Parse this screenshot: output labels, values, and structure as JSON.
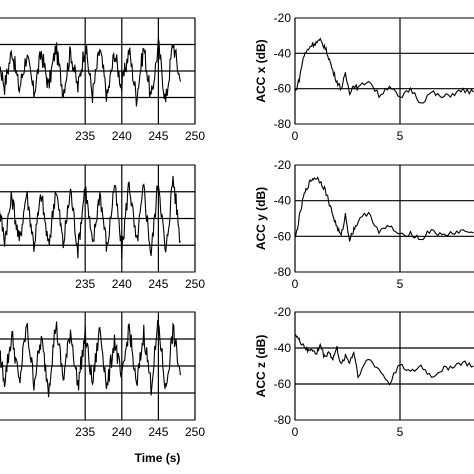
{
  "chart_data": [
    {
      "type": "line",
      "panel": "time-top",
      "xlabel": "",
      "ylabel": "",
      "xlim": [
        222,
        250
      ],
      "x_ticks": [
        235,
        240,
        245,
        250
      ],
      "x_tick_labels": [
        "235",
        "240",
        "245",
        "250"
      ],
      "grid": true,
      "series": [
        {
          "x": [
            222.0,
            223.0,
            224.0,
            225.0,
            226.0,
            227.0,
            228.0,
            229.0,
            230.0,
            231.0,
            232.0,
            233.0,
            234.0,
            235.0,
            236.0,
            237.0,
            238.0,
            239.0,
            240.0,
            241.0,
            242.0,
            243.0,
            244.0,
            245.0,
            246.0,
            247.0,
            248.0
          ],
          "y": [
            0.0,
            0.32,
            -0.28,
            0.4,
            -0.35,
            0.3,
            -0.42,
            0.36,
            -0.3,
            0.45,
            -0.4,
            0.38,
            -0.33,
            0.5,
            -0.45,
            0.42,
            -0.5,
            0.35,
            -0.3,
            0.4,
            -0.5,
            0.45,
            -0.55,
            0.5,
            -0.6,
            0.55,
            -0.2
          ]
        }
      ]
    },
    {
      "type": "line",
      "panel": "time-middle",
      "xlabel": "",
      "ylabel": "",
      "xlim": [
        222,
        250
      ],
      "x_ticks": [
        235,
        240,
        245,
        250
      ],
      "x_tick_labels": [
        "235",
        "240",
        "245",
        "250"
      ],
      "grid": true,
      "series": [
        {
          "x": [
            222.0,
            223.0,
            224.0,
            225.0,
            226.0,
            227.0,
            228.0,
            229.0,
            230.0,
            231.0,
            232.0,
            233.0,
            234.0,
            235.0,
            236.0,
            237.0,
            238.0,
            239.0,
            240.0,
            241.0,
            242.0,
            243.0,
            244.0,
            245.0,
            246.0,
            247.0,
            248.0
          ],
          "y": [
            0.0,
            0.4,
            -0.45,
            0.5,
            -0.55,
            0.6,
            -0.6,
            0.55,
            -0.65,
            0.7,
            -0.6,
            0.65,
            -0.7,
            0.75,
            -0.65,
            0.6,
            -0.7,
            0.8,
            -0.75,
            0.85,
            -0.6,
            0.7,
            -0.8,
            0.9,
            -0.85,
            0.95,
            -0.5
          ]
        }
      ]
    },
    {
      "type": "line",
      "panel": "time-bottom",
      "xlabel": "Time (s)",
      "ylabel": "",
      "xlim": [
        222,
        250
      ],
      "x_ticks": [
        235,
        240,
        245,
        250
      ],
      "x_tick_labels": [
        "235",
        "240",
        "245",
        "250"
      ],
      "grid": true,
      "series": [
        {
          "x": [
            222.0,
            223.0,
            224.0,
            225.0,
            226.0,
            227.0,
            228.0,
            229.0,
            230.0,
            231.0,
            232.0,
            233.0,
            234.0,
            235.0,
            236.0,
            237.0,
            238.0,
            239.0,
            240.0,
            241.0,
            242.0,
            243.0,
            244.0,
            245.0,
            246.0,
            247.0,
            248.0
          ],
          "y": [
            0.0,
            0.5,
            -0.3,
            0.7,
            -0.4,
            0.9,
            -0.35,
            0.6,
            -0.5,
            0.95,
            -0.3,
            0.8,
            -0.45,
            0.7,
            -0.4,
            0.85,
            -0.5,
            0.6,
            -0.35,
            0.9,
            -0.5,
            0.75,
            -0.45,
            0.95,
            -0.55,
            0.8,
            -0.2
          ]
        }
      ]
    },
    {
      "type": "line",
      "panel": "spectrum-x",
      "xlabel": "",
      "ylabel": "ACC x (dB)",
      "xlim": [
        0,
        10
      ],
      "ylim": [
        -80,
        -20
      ],
      "x_ticks": [
        0,
        5
      ],
      "x_tick_labels": [
        "0",
        "5"
      ],
      "y_ticks": [
        -20,
        -40,
        -60,
        -80
      ],
      "y_tick_labels": [
        "-20",
        "-40",
        "-60",
        "-80"
      ],
      "grid": true,
      "series": [
        {
          "x": [
            0.0,
            0.2,
            0.4,
            0.6,
            0.8,
            1.0,
            1.2,
            1.4,
            1.6,
            1.8,
            2.0,
            2.2,
            2.4,
            2.6,
            2.8,
            3.0,
            3.5,
            4.0,
            4.5,
            5.0,
            5.5,
            6.0,
            6.5,
            7.0,
            7.5,
            8.0,
            8.5
          ],
          "y": [
            -62,
            -55,
            -42,
            -38,
            -35,
            -34,
            -33,
            -36,
            -42,
            -50,
            -56,
            -60,
            -52,
            -62,
            -58,
            -60,
            -55,
            -64,
            -58,
            -66,
            -60,
            -68,
            -62,
            -65,
            -63,
            -61,
            -62
          ]
        }
      ]
    },
    {
      "type": "line",
      "panel": "spectrum-y",
      "xlabel": "",
      "ylabel": "ACC y (dB)",
      "xlim": [
        0,
        10
      ],
      "ylim": [
        -80,
        -20
      ],
      "x_ticks": [
        0,
        5
      ],
      "x_tick_labels": [
        "0",
        "5"
      ],
      "y_ticks": [
        -20,
        -40,
        -60,
        -80
      ],
      "y_tick_labels": [
        "-20",
        "-40",
        "-60",
        "-80"
      ],
      "grid": true,
      "series": [
        {
          "x": [
            0.0,
            0.2,
            0.4,
            0.6,
            0.8,
            1.0,
            1.2,
            1.4,
            1.6,
            1.8,
            2.0,
            2.2,
            2.4,
            2.6,
            2.8,
            3.0,
            3.5,
            4.0,
            4.5,
            5.0,
            5.5,
            6.0,
            6.5,
            7.0,
            7.5,
            8.0,
            8.5
          ],
          "y": [
            -62,
            -50,
            -38,
            -32,
            -28,
            -27,
            -29,
            -33,
            -40,
            -48,
            -55,
            -60,
            -48,
            -62,
            -56,
            -52,
            -46,
            -58,
            -54,
            -60,
            -58,
            -62,
            -56,
            -60,
            -58,
            -57,
            -58
          ]
        }
      ]
    },
    {
      "type": "line",
      "panel": "spectrum-z",
      "xlabel": "",
      "ylabel": "ACC z (dB)",
      "xlim": [
        0,
        10
      ],
      "ylim": [
        -80,
        -20
      ],
      "x_ticks": [
        0,
        5
      ],
      "x_tick_labels": [
        "0",
        "5"
      ],
      "y_ticks": [
        -20,
        -40,
        -60,
        -80
      ],
      "y_tick_labels": [
        "-20",
        "-40",
        "-60",
        "-80"
      ],
      "grid": true,
      "series": [
        {
          "x": [
            0.0,
            0.2,
            0.4,
            0.6,
            0.8,
            1.0,
            1.2,
            1.4,
            1.6,
            1.8,
            2.0,
            2.2,
            2.4,
            2.6,
            2.8,
            3.0,
            3.5,
            4.0,
            4.5,
            5.0,
            5.5,
            6.0,
            6.5,
            7.0,
            7.5,
            8.0,
            8.5
          ],
          "y": [
            -32,
            -36,
            -38,
            -42,
            -40,
            -44,
            -38,
            -45,
            -42,
            -46,
            -40,
            -50,
            -44,
            -48,
            -42,
            -55,
            -46,
            -52,
            -60,
            -48,
            -54,
            -50,
            -56,
            -52,
            -50,
            -48,
            -50
          ]
        }
      ]
    }
  ]
}
